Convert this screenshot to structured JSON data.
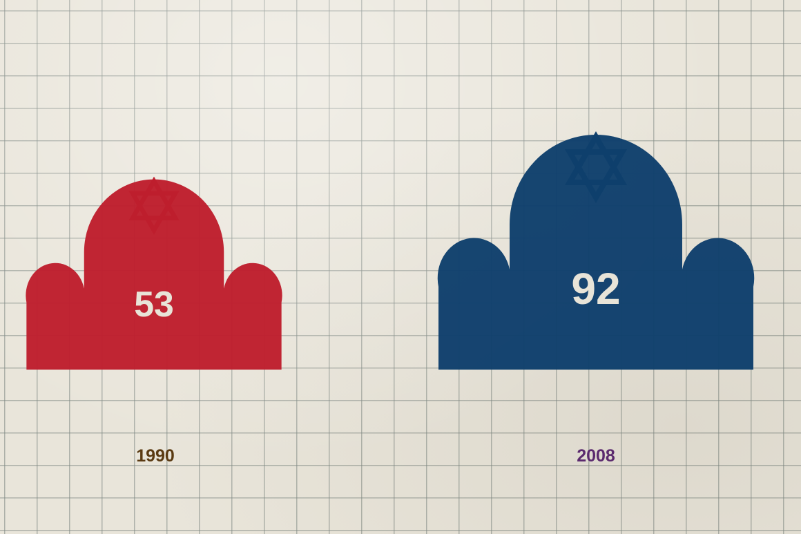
{
  "chart_data": {
    "type": "bar",
    "title": "",
    "xlabel": "",
    "ylabel": "",
    "categories": [
      "1990",
      "2008"
    ],
    "values": [
      53,
      92
    ],
    "value_labels": [
      "53",
      "92"
    ],
    "mark": "synagogue-icon",
    "mark_topper": "star-of-david-icon",
    "colors": {
      "bar": [
        "#be1e2d",
        "#0e3f6c"
      ],
      "year_label": [
        "#5a3a12",
        "#5b2a6e"
      ],
      "value_label": "#e8e4d8",
      "grid": "#7d8782",
      "paper": "#e9e5da"
    },
    "grid": true,
    "legend": "none"
  }
}
